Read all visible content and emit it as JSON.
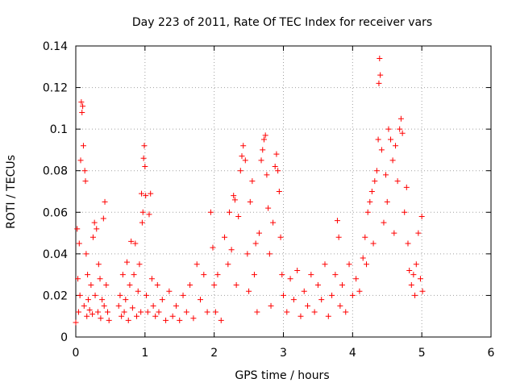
{
  "chart_data": {
    "type": "scatter",
    "title": "Day 223 of 2011, Rate Of TEC Index for receiver vars",
    "xlabel": "GPS time / hours",
    "ylabel": "ROTI / TECUs",
    "xlim": [
      0,
      6
    ],
    "ylim": [
      0,
      0.14
    ],
    "xticks": [
      0,
      1,
      2,
      3,
      4,
      5,
      6
    ],
    "xtick_labels": [
      "0",
      "1",
      "2",
      "3",
      "4",
      "5",
      "6"
    ],
    "yticks": [
      0,
      0.02,
      0.04,
      0.06,
      0.08,
      0.1,
      0.12,
      0.14
    ],
    "ytick_labels": [
      "0",
      "0.02",
      "0.04",
      "0.06",
      "0.08",
      "0.1",
      "0.12",
      "0.14"
    ],
    "grid": true,
    "marker": "+",
    "color": "#ff0000",
    "series": [
      {
        "name": "ROTI",
        "points": [
          [
            0.0,
            0.007
          ],
          [
            0.02,
            0.052
          ],
          [
            0.03,
            0.028
          ],
          [
            0.04,
            0.012
          ],
          [
            0.05,
            0.045
          ],
          [
            0.06,
            0.02
          ],
          [
            0.07,
            0.085
          ],
          [
            0.08,
            0.113
          ],
          [
            0.09,
            0.108
          ],
          [
            0.1,
            0.111
          ],
          [
            0.11,
            0.092
          ],
          [
            0.12,
            0.015
          ],
          [
            0.13,
            0.08
          ],
          [
            0.14,
            0.075
          ],
          [
            0.15,
            0.04
          ],
          [
            0.16,
            0.01
          ],
          [
            0.17,
            0.03
          ],
          [
            0.18,
            0.018
          ],
          [
            0.2,
            0.013
          ],
          [
            0.22,
            0.025
          ],
          [
            0.24,
            0.011
          ],
          [
            0.25,
            0.048
          ],
          [
            0.27,
            0.055
          ],
          [
            0.28,
            0.02
          ],
          [
            0.3,
            0.052
          ],
          [
            0.32,
            0.012
          ],
          [
            0.33,
            0.035
          ],
          [
            0.35,
            0.028
          ],
          [
            0.36,
            0.009
          ],
          [
            0.38,
            0.018
          ],
          [
            0.4,
            0.057
          ],
          [
            0.41,
            0.015
          ],
          [
            0.42,
            0.065
          ],
          [
            0.44,
            0.025
          ],
          [
            0.46,
            0.012
          ],
          [
            0.48,
            0.008
          ],
          [
            0.62,
            0.015
          ],
          [
            0.64,
            0.02
          ],
          [
            0.66,
            0.01
          ],
          [
            0.68,
            0.03
          ],
          [
            0.7,
            0.012
          ],
          [
            0.72,
            0.018
          ],
          [
            0.74,
            0.036
          ],
          [
            0.76,
            0.008
          ],
          [
            0.78,
            0.025
          ],
          [
            0.8,
            0.046
          ],
          [
            0.82,
            0.014
          ],
          [
            0.84,
            0.03
          ],
          [
            0.86,
            0.045
          ],
          [
            0.88,
            0.01
          ],
          [
            0.9,
            0.022
          ],
          [
            0.92,
            0.035
          ],
          [
            0.94,
            0.012
          ],
          [
            0.95,
            0.069
          ],
          [
            0.96,
            0.055
          ],
          [
            0.97,
            0.06
          ],
          [
            0.98,
            0.086
          ],
          [
            0.99,
            0.092
          ],
          [
            1.0,
            0.082
          ],
          [
            1.01,
            0.068
          ],
          [
            1.02,
            0.02
          ],
          [
            1.04,
            0.012
          ],
          [
            1.06,
            0.059
          ],
          [
            1.08,
            0.069
          ],
          [
            1.1,
            0.028
          ],
          [
            1.12,
            0.015
          ],
          [
            1.15,
            0.01
          ],
          [
            1.18,
            0.025
          ],
          [
            1.2,
            0.012
          ],
          [
            1.25,
            0.018
          ],
          [
            1.3,
            0.008
          ],
          [
            1.35,
            0.022
          ],
          [
            1.4,
            0.01
          ],
          [
            1.45,
            0.015
          ],
          [
            1.5,
            0.008
          ],
          [
            1.55,
            0.02
          ],
          [
            1.6,
            0.012
          ],
          [
            1.65,
            0.025
          ],
          [
            1.7,
            0.009
          ],
          [
            1.75,
            0.035
          ],
          [
            1.8,
            0.018
          ],
          [
            1.85,
            0.03
          ],
          [
            1.9,
            0.012
          ],
          [
            1.95,
            0.06
          ],
          [
            1.98,
            0.043
          ],
          [
            2.0,
            0.025
          ],
          [
            2.02,
            0.012
          ],
          [
            2.05,
            0.03
          ],
          [
            2.1,
            0.008
          ],
          [
            2.15,
            0.048
          ],
          [
            2.2,
            0.035
          ],
          [
            2.22,
            0.06
          ],
          [
            2.25,
            0.042
          ],
          [
            2.28,
            0.068
          ],
          [
            2.3,
            0.066
          ],
          [
            2.32,
            0.025
          ],
          [
            2.35,
            0.058
          ],
          [
            2.38,
            0.08
          ],
          [
            2.4,
            0.087
          ],
          [
            2.42,
            0.092
          ],
          [
            2.45,
            0.085
          ],
          [
            2.48,
            0.04
          ],
          [
            2.5,
            0.022
          ],
          [
            2.52,
            0.065
          ],
          [
            2.55,
            0.075
          ],
          [
            2.58,
            0.03
          ],
          [
            2.6,
            0.045
          ],
          [
            2.62,
            0.012
          ],
          [
            2.65,
            0.05
          ],
          [
            2.68,
            0.085
          ],
          [
            2.7,
            0.09
          ],
          [
            2.72,
            0.095
          ],
          [
            2.74,
            0.097
          ],
          [
            2.76,
            0.078
          ],
          [
            2.78,
            0.062
          ],
          [
            2.8,
            0.04
          ],
          [
            2.82,
            0.015
          ],
          [
            2.85,
            0.055
          ],
          [
            2.88,
            0.082
          ],
          [
            2.9,
            0.088
          ],
          [
            2.92,
            0.08
          ],
          [
            2.94,
            0.07
          ],
          [
            2.96,
            0.048
          ],
          [
            2.98,
            0.03
          ],
          [
            3.0,
            0.02
          ],
          [
            3.05,
            0.012
          ],
          [
            3.1,
            0.028
          ],
          [
            3.15,
            0.018
          ],
          [
            3.2,
            0.032
          ],
          [
            3.25,
            0.01
          ],
          [
            3.3,
            0.022
          ],
          [
            3.35,
            0.015
          ],
          [
            3.4,
            0.03
          ],
          [
            3.45,
            0.012
          ],
          [
            3.5,
            0.025
          ],
          [
            3.55,
            0.018
          ],
          [
            3.6,
            0.035
          ],
          [
            3.65,
            0.01
          ],
          [
            3.7,
            0.02
          ],
          [
            3.75,
            0.03
          ],
          [
            3.78,
            0.056
          ],
          [
            3.8,
            0.048
          ],
          [
            3.82,
            0.015
          ],
          [
            3.85,
            0.025
          ],
          [
            3.9,
            0.012
          ],
          [
            3.95,
            0.035
          ],
          [
            4.0,
            0.02
          ],
          [
            4.05,
            0.028
          ],
          [
            4.1,
            0.022
          ],
          [
            4.15,
            0.038
          ],
          [
            4.18,
            0.048
          ],
          [
            4.2,
            0.035
          ],
          [
            4.22,
            0.06
          ],
          [
            4.25,
            0.065
          ],
          [
            4.28,
            0.07
          ],
          [
            4.3,
            0.045
          ],
          [
            4.32,
            0.075
          ],
          [
            4.35,
            0.08
          ],
          [
            4.37,
            0.095
          ],
          [
            4.38,
            0.122
          ],
          [
            4.39,
            0.134
          ],
          [
            4.4,
            0.126
          ],
          [
            4.42,
            0.09
          ],
          [
            4.45,
            0.055
          ],
          [
            4.48,
            0.078
          ],
          [
            4.5,
            0.065
          ],
          [
            4.52,
            0.1
          ],
          [
            4.55,
            0.095
          ],
          [
            4.58,
            0.085
          ],
          [
            4.6,
            0.05
          ],
          [
            4.62,
            0.092
          ],
          [
            4.65,
            0.075
          ],
          [
            4.68,
            0.1
          ],
          [
            4.7,
            0.105
          ],
          [
            4.72,
            0.098
          ],
          [
            4.75,
            0.06
          ],
          [
            4.78,
            0.072
          ],
          [
            4.8,
            0.045
          ],
          [
            4.82,
            0.032
          ],
          [
            4.85,
            0.025
          ],
          [
            4.88,
            0.03
          ],
          [
            4.9,
            0.02
          ],
          [
            4.92,
            0.035
          ],
          [
            4.95,
            0.05
          ],
          [
            4.98,
            0.028
          ],
          [
            5.0,
            0.058
          ],
          [
            5.01,
            0.022
          ]
        ]
      }
    ]
  }
}
